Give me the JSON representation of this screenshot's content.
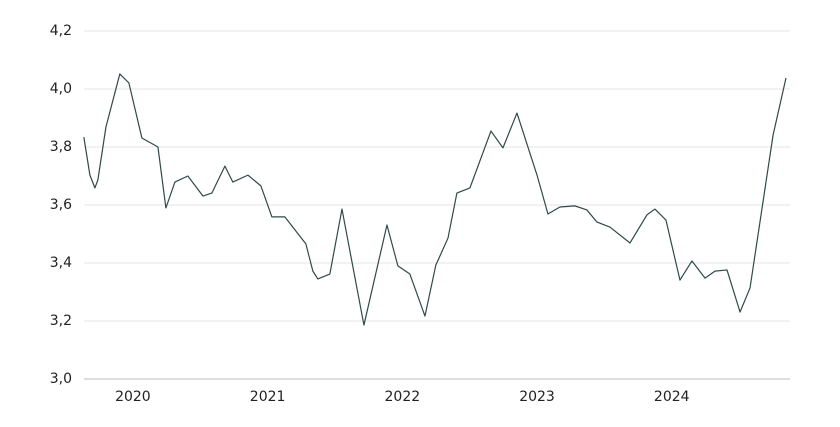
{
  "chart_data": {
    "type": "line",
    "x": [
      2019.636,
      2019.681,
      2019.718,
      2019.74,
      2019.8,
      2019.903,
      2019.97,
      2020.067,
      2020.186,
      2020.245,
      2020.312,
      2020.408,
      2020.52,
      2020.586,
      2020.683,
      2020.742,
      2020.854,
      2020.95,
      2021.032,
      2021.128,
      2021.284,
      2021.336,
      2021.373,
      2021.462,
      2021.552,
      2021.715,
      2021.886,
      2021.967,
      2022.056,
      2022.168,
      2022.249,
      2022.339,
      2022.405,
      2022.502,
      2022.658,
      2022.747,
      2022.851,
      2023.0,
      2023.081,
      2023.17,
      2023.281,
      2023.37,
      2023.445,
      2023.541,
      2023.69,
      2023.816,
      2023.875,
      2023.957,
      2024.061,
      2024.15,
      2024.247,
      2024.321,
      2024.41,
      2024.507,
      2024.581,
      2024.752,
      2024.848
    ],
    "values": [
      3.834,
      3.703,
      3.659,
      3.686,
      3.869,
      4.052,
      4.021,
      3.831,
      3.8,
      3.59,
      3.679,
      3.7,
      3.631,
      3.641,
      3.734,
      3.679,
      3.703,
      3.666,
      3.559,
      3.559,
      3.466,
      3.372,
      3.345,
      3.362,
      3.586,
      3.186,
      3.531,
      3.39,
      3.362,
      3.217,
      3.393,
      3.486,
      3.641,
      3.659,
      3.855,
      3.797,
      3.917,
      3.703,
      3.569,
      3.593,
      3.597,
      3.583,
      3.541,
      3.524,
      3.469,
      3.566,
      3.586,
      3.548,
      3.341,
      3.407,
      3.348,
      3.372,
      3.376,
      3.231,
      3.314,
      3.841,
      4.038
    ],
    "color": "#2e4a48",
    "xlim": [
      2019.6,
      2024.9
    ],
    "xticks": [
      2020,
      2021,
      2022,
      2023,
      2024
    ],
    "ylim": [
      3.0,
      4.2
    ],
    "yticks": [
      {
        "value": 3.0,
        "label": "3,0"
      },
      {
        "value": 3.2,
        "label": "3,2"
      },
      {
        "value": 3.4,
        "label": "3,4"
      },
      {
        "value": 3.6,
        "label": "3,6"
      },
      {
        "value": 3.8,
        "label": "3,8"
      },
      {
        "value": 4.0,
        "label": "4,0"
      },
      {
        "value": 4.2,
        "label": "4,2"
      }
    ],
    "grid": true
  }
}
